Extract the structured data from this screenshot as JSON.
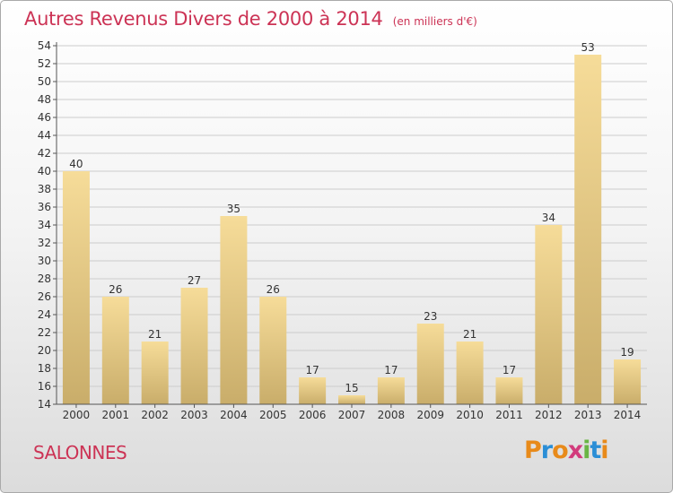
{
  "title": "Autres Revenus Divers de 2000 à 2014",
  "subtitle": "(en milliers d'€)",
  "commune": "SALONNES",
  "logo": {
    "letters": [
      "P",
      "r",
      "o",
      "x",
      "i",
      "t",
      "i"
    ],
    "colors": [
      "#e88a1a",
      "#2b8ed6",
      "#e88a1a",
      "#d23b7c",
      "#69b544",
      "#2b8ed6",
      "#e88a1a"
    ]
  },
  "colors": {
    "title": "#cc3355",
    "bar_light": "#f6dc99",
    "bar_dark": "#c9ad6a",
    "grid": "#cccccc"
  },
  "chart_data": {
    "type": "bar",
    "categories": [
      "2000",
      "2001",
      "2002",
      "2003",
      "2004",
      "2005",
      "2006",
      "2007",
      "2008",
      "2009",
      "2010",
      "2011",
      "2012",
      "2013",
      "2014"
    ],
    "values": [
      40,
      26,
      21,
      27,
      35,
      26,
      17,
      15,
      17,
      23,
      21,
      17,
      34,
      53,
      19
    ],
    "title": "Autres Revenus Divers de 2000 à 2014",
    "xlabel": "",
    "ylabel": "",
    "ylim": [
      14,
      54
    ],
    "yticks": [
      14,
      16,
      18,
      20,
      22,
      24,
      26,
      28,
      30,
      32,
      34,
      36,
      38,
      40,
      42,
      44,
      46,
      48,
      50,
      52,
      54
    ],
    "grid": true,
    "legend": "none"
  }
}
